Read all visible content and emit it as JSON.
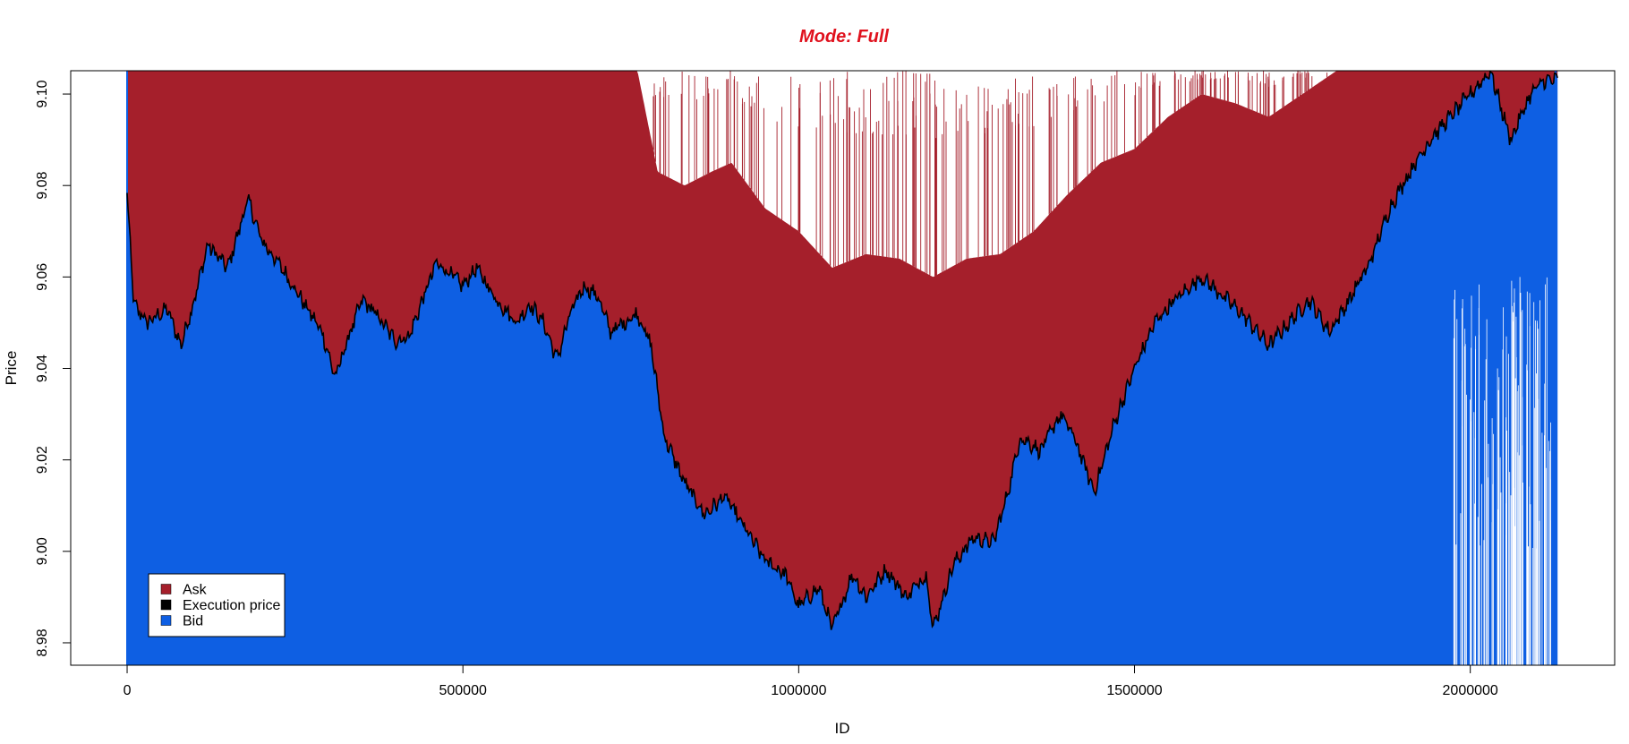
{
  "chart_data": {
    "type": "area",
    "title": "Mode: Full",
    "xlabel": "ID",
    "ylabel": "Price",
    "xlim": [
      -84000,
      2215000
    ],
    "ylim": [
      8.9751,
      9.1051
    ],
    "x_ticks": [
      0,
      500000,
      1000000,
      1500000,
      2000000
    ],
    "x_tick_labels": [
      "0",
      "500000",
      "1000000",
      "1500000",
      "2000000"
    ],
    "y_ticks": [
      8.98,
      9.0,
      9.02,
      9.04,
      9.06,
      9.08,
      9.1
    ],
    "y_tick_labels": [
      "8.98",
      "9.00",
      "9.02",
      "9.04",
      "9.06",
      "9.08",
      "9.10"
    ],
    "grid": false,
    "legend": {
      "position": "bottom-left",
      "entries": [
        {
          "label": "Ask",
          "color": "#a51f2b"
        },
        {
          "label": "Execution price",
          "color": "#000000"
        },
        {
          "label": "Bid",
          "color": "#0e5fe3"
        }
      ]
    },
    "colors": {
      "ask": "#a51f2b",
      "execution": "#000000",
      "bid": "#0e5fe3",
      "title": "#e0111d"
    },
    "x_range": [
      0,
      2130000
    ],
    "series": [
      {
        "name": "Execution price",
        "x": [
          0,
          10000,
          30000,
          60000,
          80000,
          100000,
          120000,
          150000,
          180000,
          200000,
          230000,
          260000,
          290000,
          310000,
          330000,
          350000,
          370000,
          400000,
          420000,
          440000,
          460000,
          480000,
          500000,
          520000,
          550000,
          580000,
          600000,
          620000,
          640000,
          660000,
          680000,
          700000,
          720000,
          740000,
          760000,
          780000,
          800000,
          830000,
          860000,
          890000,
          920000,
          950000,
          980000,
          1000000,
          1030000,
          1050000,
          1080000,
          1100000,
          1130000,
          1160000,
          1190000,
          1200000,
          1230000,
          1260000,
          1290000,
          1310000,
          1330000,
          1360000,
          1390000,
          1410000,
          1440000,
          1470000,
          1500000,
          1530000,
          1560000,
          1600000,
          1630000,
          1660000,
          1700000,
          1730000,
          1760000,
          1790000,
          1820000,
          1850000,
          1880000,
          1910000,
          1940000,
          1970000,
          2000000,
          2030000,
          2060000,
          2090000,
          2110000
        ],
        "values": [
          9.078,
          9.054,
          9.05,
          9.053,
          9.045,
          9.055,
          9.067,
          9.062,
          9.077,
          9.068,
          9.062,
          9.055,
          9.048,
          9.038,
          9.047,
          9.055,
          9.052,
          9.046,
          9.047,
          9.055,
          9.063,
          9.061,
          9.058,
          9.062,
          9.055,
          9.05,
          9.054,
          9.05,
          9.042,
          9.052,
          9.058,
          9.056,
          9.048,
          9.05,
          9.052,
          9.045,
          9.025,
          9.015,
          9.008,
          9.012,
          9.005,
          8.998,
          8.995,
          8.988,
          8.992,
          8.983,
          8.995,
          8.99,
          8.996,
          8.99,
          8.995,
          8.983,
          8.997,
          9.003,
          9.002,
          9.012,
          9.025,
          9.022,
          9.03,
          9.025,
          9.013,
          9.028,
          9.04,
          9.05,
          9.055,
          9.06,
          9.056,
          9.052,
          9.045,
          9.05,
          9.055,
          9.048,
          9.055,
          9.063,
          9.075,
          9.083,
          9.09,
          9.095,
          9.1,
          9.105,
          9.09,
          9.1,
          9.103
        ]
      },
      {
        "name": "Ask",
        "x": [
          0,
          100000,
          200000,
          300000,
          400000,
          500000,
          600000,
          700000,
          760000,
          790000,
          830000,
          870000,
          900000,
          950000,
          1000000,
          1050000,
          1100000,
          1150000,
          1200000,
          1250000,
          1300000,
          1350000,
          1400000,
          1450000,
          1500000,
          1550000,
          1600000,
          1650000,
          1700000,
          1750000,
          1800000,
          1850000,
          1900000,
          1950000,
          2000000,
          2050000,
          2100000,
          2130000
        ],
        "values": [
          9.105,
          9.105,
          9.105,
          9.105,
          9.105,
          9.105,
          9.105,
          9.105,
          9.105,
          9.083,
          9.08,
          9.083,
          9.085,
          9.075,
          9.07,
          9.062,
          9.065,
          9.064,
          9.06,
          9.064,
          9.065,
          9.07,
          9.078,
          9.085,
          9.088,
          9.095,
          9.1,
          9.098,
          9.095,
          9.1,
          9.105,
          9.105,
          9.105,
          9.105,
          9.105,
          9.105,
          9.105,
          9.105
        ]
      },
      {
        "name": "Bid",
        "x": [
          0,
          2130000
        ],
        "values": [
          8.9751,
          8.9751
        ]
      }
    ]
  }
}
